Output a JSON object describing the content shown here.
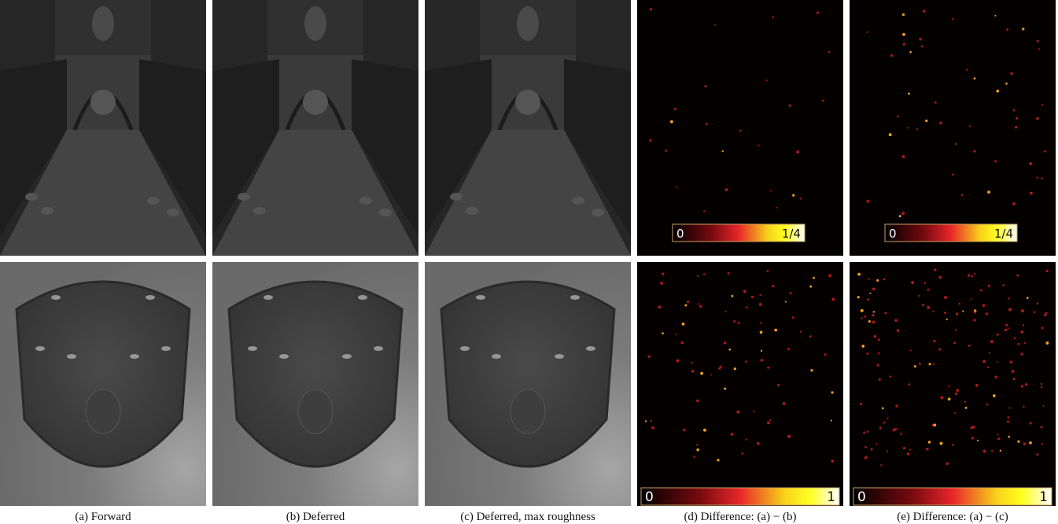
{
  "figure": {
    "captions": [
      "(a) Forward",
      "(b) Deferred",
      "(c) Deferred, max roughness",
      "(d) Difference: (a) − (b)",
      "(e) Difference: (a) − (c)"
    ],
    "colorbars": [
      {
        "low": "0",
        "high": "1/4"
      },
      {
        "low": "0",
        "high": "1/4"
      },
      {
        "low": "0",
        "high": "1"
      },
      {
        "low": "0",
        "high": "1"
      }
    ]
  }
}
